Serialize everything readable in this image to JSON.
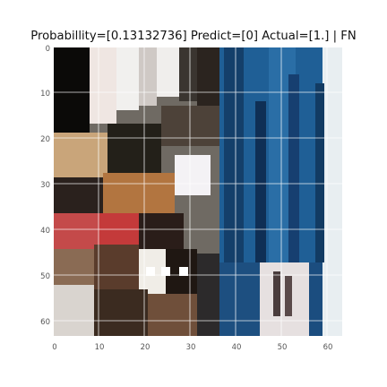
{
  "title": "Probabillity=[0.13132736] Predict=[0] Actual=[1.] | FN",
  "axes": {
    "x_ticks": [
      "0",
      "10",
      "20",
      "30",
      "40",
      "50",
      "60"
    ],
    "y_ticks": [
      "0",
      "10",
      "20",
      "30",
      "40",
      "50",
      "60"
    ],
    "grid": true
  },
  "image": {
    "description_colors": {
      "dark": "#0b0a08",
      "blue": "#1f5f96",
      "navy": "#123b63",
      "red": "#c43a3a",
      "tan": "#c9a57a",
      "white": "#f1f0ee",
      "orange": "#c8783a"
    }
  }
}
